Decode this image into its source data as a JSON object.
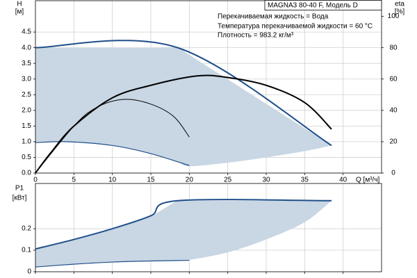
{
  "chart_data": [
    {
      "type": "line",
      "title": "MAGNA3 80-40 F, Модель D",
      "annotations": [
        "Перекачиваемая жидкость = Вода",
        "Температура перекачиваемой жидкости = 60 °C",
        "Плотность = 983.2 кг/м³"
      ],
      "ylabel": "H",
      "yunit": "[м]",
      "y2label": "eta",
      "y2unit": "[%]",
      "xlabel": "Q [м³/ч]",
      "xlim": [
        0,
        45
      ],
      "xticks": [
        0,
        5,
        10,
        15,
        20,
        25,
        30,
        35,
        40
      ],
      "ylim": [
        0,
        5.5
      ],
      "yticks": [
        {
          "value": 0,
          "label": "0.0"
        },
        0.5,
        {
          "value": 1,
          "label": "1.0"
        },
        1.5,
        {
          "value": 2,
          "label": "2.0"
        },
        2.5,
        {
          "value": 3,
          "label": "3.0"
        },
        3.5,
        {
          "value": 4,
          "label": "4.0"
        },
        4.5
      ],
      "y2lim": [
        0,
        110
      ],
      "y2ticks": [
        0,
        20,
        40,
        60,
        80,
        100
      ],
      "grid": true,
      "show_xtick_labels": true,
      "bands": [
        {
          "color": "#c9d6e3",
          "x": [
            0,
            4,
            10,
            15,
            18.5,
            20,
            25,
            30,
            35,
            38.5
          ],
          "upper": [
            4,
            4,
            4,
            4,
            4,
            3.77,
            2.99,
            2.21,
            1.43,
            0.88
          ],
          "lower": [
            0.97,
            1.0,
            0.88,
            0.62,
            0.36,
            0.22,
            0.33,
            0.5,
            0.7,
            0.88
          ]
        }
      ],
      "series": [
        {
          "color": "#1f4f8a",
          "width": 2,
          "x": [
            0,
            18.5,
            38.5
          ],
          "values": [
            4,
            4,
            0.88
          ]
        },
        {
          "color": "#1f4f8a",
          "width": 1.2,
          "x": [
            0,
            4,
            10,
            15,
            20
          ],
          "values": [
            0.97,
            1.0,
            0.88,
            0.62,
            0.24
          ]
        },
        {
          "color": "#000000",
          "width": 2,
          "axis": "y2",
          "x": [
            0,
            2,
            5,
            10,
            15,
            21,
            25,
            30,
            35,
            38.5
          ],
          "values": [
            0,
            13,
            30,
            48,
            56,
            62,
            61,
            56,
            45,
            28
          ]
        },
        {
          "color": "#000000",
          "width": 1,
          "axis": "y2",
          "x": [
            0,
            5,
            8,
            11.5,
            15,
            18,
            20
          ],
          "values": [
            0,
            30,
            42,
            47,
            44,
            36,
            23
          ]
        }
      ]
    },
    {
      "type": "line",
      "ylabel": "P1",
      "yunit": "[кВт]",
      "xlim": [
        0,
        45
      ],
      "xticks": [
        0,
        5,
        10,
        15,
        20,
        25,
        30,
        35,
        40
      ],
      "ylim": [
        0,
        0.41
      ],
      "yticks": [
        0,
        0.1,
        0.2
      ],
      "grid": true,
      "show_xtick_labels": false,
      "bands": [
        {
          "color": "#c9d6e3",
          "x": [
            0,
            5,
            10,
            15,
            18.5,
            20,
            25,
            30,
            35,
            38.5
          ],
          "upper": [
            0.106,
            0.15,
            0.2,
            0.26,
            0.33,
            0.33,
            0.33,
            0.33,
            0.33,
            0.33
          ],
          "lower": [
            0.022,
            0.035,
            0.045,
            0.05,
            0.052,
            0.055,
            0.09,
            0.15,
            0.23,
            0.33
          ]
        }
      ],
      "series": [
        {
          "color": "#1f4f8a",
          "width": 2,
          "x": [
            0,
            5,
            10,
            15,
            18.5,
            38.5
          ],
          "values": [
            0.106,
            0.15,
            0.2,
            0.26,
            0.33,
            0.33
          ]
        },
        {
          "color": "#1f4f8a",
          "width": 1.2,
          "x": [
            0,
            5,
            10,
            15,
            20
          ],
          "values": [
            0.022,
            0.035,
            0.045,
            0.05,
            0.053
          ]
        }
      ]
    }
  ]
}
